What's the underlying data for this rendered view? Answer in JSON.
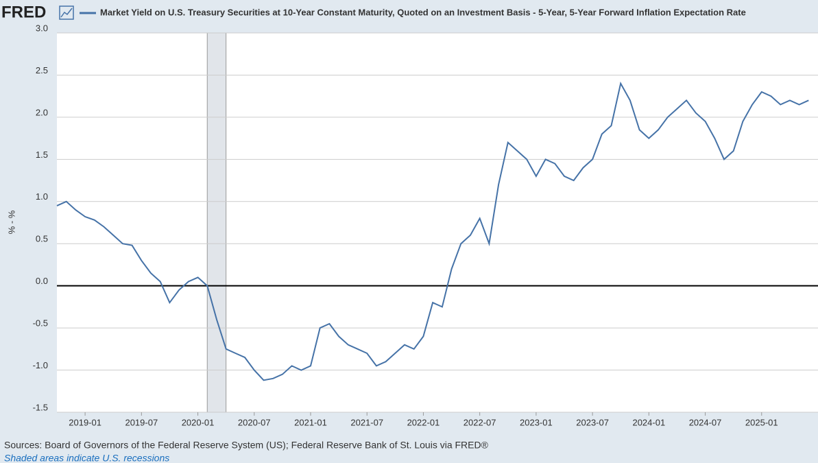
{
  "brand": "FRED",
  "chart_data": {
    "type": "line",
    "y_label": "% - %",
    "x": [
      "2018-10",
      "2018-11",
      "2018-12",
      "2019-01",
      "2019-02",
      "2019-03",
      "2019-04",
      "2019-05",
      "2019-06",
      "2019-07",
      "2019-08",
      "2019-09",
      "2019-10",
      "2019-11",
      "2019-12",
      "2020-01",
      "2020-02",
      "2020-03",
      "2020-04",
      "2020-05",
      "2020-06",
      "2020-07",
      "2020-08",
      "2020-09",
      "2020-10",
      "2020-11",
      "2020-12",
      "2021-01",
      "2021-02",
      "2021-03",
      "2021-04",
      "2021-05",
      "2021-06",
      "2021-07",
      "2021-08",
      "2021-09",
      "2021-10",
      "2021-11",
      "2021-12",
      "2022-01",
      "2022-02",
      "2022-03",
      "2022-04",
      "2022-05",
      "2022-06",
      "2022-07",
      "2022-08",
      "2022-09",
      "2022-10",
      "2022-11",
      "2022-12",
      "2023-01",
      "2023-02",
      "2023-03",
      "2023-04",
      "2023-05",
      "2023-06",
      "2023-07",
      "2023-08",
      "2023-09",
      "2023-10",
      "2023-11",
      "2023-12",
      "2024-01",
      "2024-02",
      "2024-03",
      "2024-04",
      "2024-05",
      "2024-06",
      "2024-07",
      "2024-08",
      "2024-09",
      "2024-10",
      "2024-11",
      "2024-12",
      "2025-01",
      "2025-02",
      "2025-03",
      "2025-04",
      "2025-05",
      "2025-06"
    ],
    "series": [
      {
        "name": "Market Yield on U.S. Treasury Securities at 10-Year Constant Maturity, Quoted on an Investment Basis - 5-Year, 5-Year Forward Inflation Expectation Rate",
        "color": "#4572a7",
        "values": [
          0.95,
          1.0,
          0.9,
          0.82,
          0.78,
          0.7,
          0.6,
          0.5,
          0.48,
          0.3,
          0.15,
          0.05,
          -0.2,
          -0.05,
          0.05,
          0.1,
          0.0,
          -0.4,
          -0.75,
          -0.8,
          -0.85,
          -1.0,
          -1.12,
          -1.1,
          -1.05,
          -0.95,
          -1.0,
          -0.95,
          -0.5,
          -0.45,
          -0.6,
          -0.7,
          -0.75,
          -0.8,
          -0.95,
          -0.9,
          -0.8,
          -0.7,
          -0.75,
          -0.6,
          -0.2,
          -0.25,
          0.2,
          0.5,
          0.6,
          0.8,
          0.5,
          1.2,
          1.7,
          1.6,
          1.5,
          1.3,
          1.5,
          1.45,
          1.3,
          1.25,
          1.4,
          1.5,
          1.8,
          1.9,
          2.4,
          2.2,
          1.85,
          1.75,
          1.85,
          2.0,
          2.1,
          2.2,
          2.05,
          1.95,
          1.75,
          1.5,
          1.6,
          1.95,
          2.15,
          2.3,
          2.25,
          2.15,
          2.2,
          2.15,
          2.2
        ]
      }
    ],
    "xlim": [
      "2018-10",
      "2025-07"
    ],
    "xticks": [
      "2019-01",
      "2019-07",
      "2020-01",
      "2020-07",
      "2021-01",
      "2021-07",
      "2022-01",
      "2022-07",
      "2023-01",
      "2023-07",
      "2024-01",
      "2024-07",
      "2025-01"
    ],
    "ylim": [
      -1.5,
      3
    ],
    "yticks": [
      {
        "value": -1.5,
        "label": "-1.5"
      },
      {
        "value": -1,
        "label": "-1.0"
      },
      -0.5,
      {
        "value": 0,
        "label": "0.0"
      },
      0.5,
      {
        "value": 1,
        "label": "1.0"
      },
      1.5,
      {
        "value": 2,
        "label": "2.0"
      },
      2.5,
      {
        "value": 3,
        "label": "3.0"
      }
    ],
    "grid": true,
    "recessions": [
      {
        "start": "2020-02",
        "end": "2020-04"
      }
    ],
    "recession_color": "#e1e5ea"
  },
  "footer": {
    "sources": "Sources: Board of Governors of the Federal Reserve System (US); Federal Reserve Bank of St. Louis via FRED®",
    "note": "Shaded areas indicate U.S. recessions"
  }
}
